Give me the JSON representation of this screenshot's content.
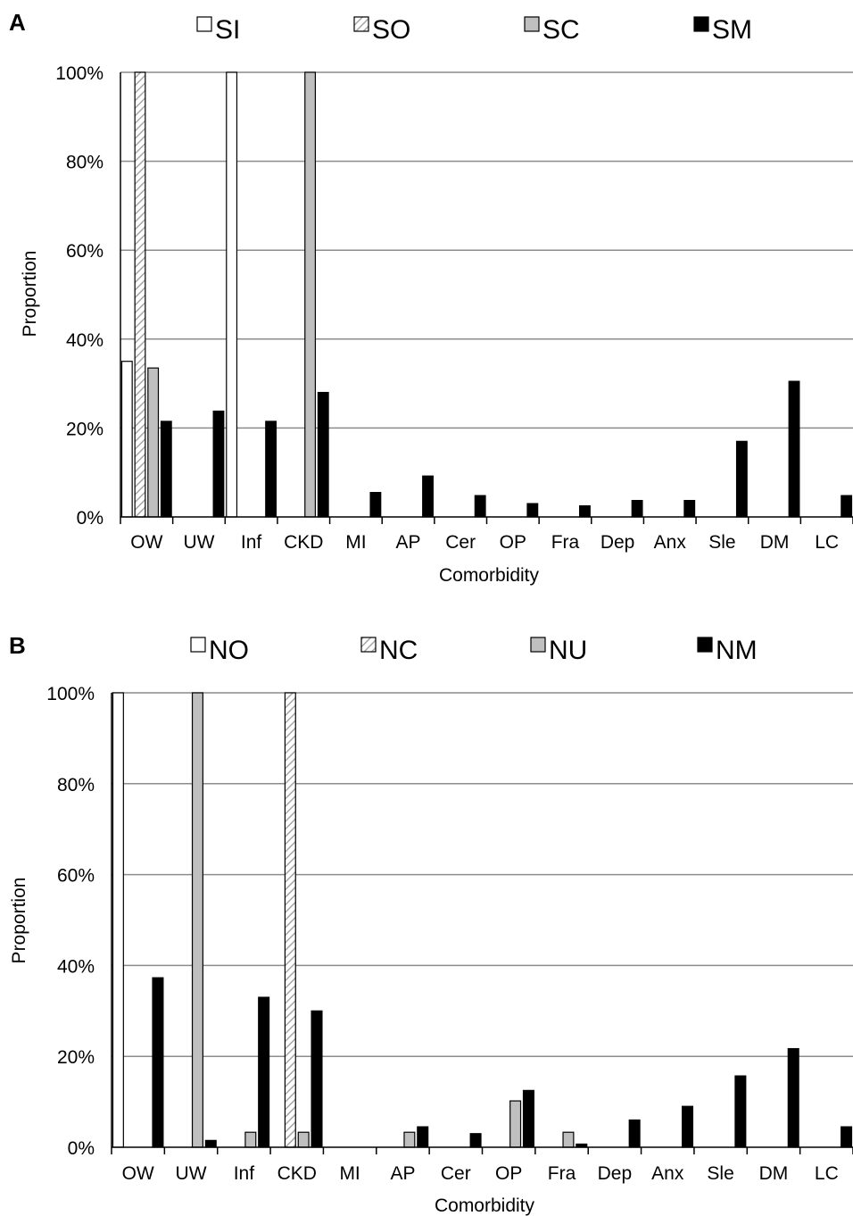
{
  "chart_data": [
    {
      "type": "bar",
      "panel_label": "A",
      "categories": [
        "OW",
        "UW",
        "Inf",
        "CKD",
        "MI",
        "AP",
        "Cer",
        "OP",
        "Fra",
        "Dep",
        "Anx",
        "Sle",
        "DM",
        "LC"
      ],
      "series": [
        {
          "name": "SI",
          "values": [
            35,
            0,
            100,
            0,
            0,
            0,
            0,
            0,
            0,
            0,
            0,
            0,
            0,
            0
          ]
        },
        {
          "name": "SO",
          "values": [
            100,
            0,
            0,
            0,
            0,
            0,
            0,
            0,
            0,
            0,
            0,
            0,
            0,
            0
          ]
        },
        {
          "name": "SC",
          "values": [
            33.5,
            0,
            0,
            100,
            0,
            0,
            0,
            0,
            0,
            0,
            0,
            0,
            0,
            0
          ]
        },
        {
          "name": "SM",
          "values": [
            21.5,
            23.8,
            21.5,
            28,
            5.5,
            9.2,
            4.8,
            3,
            2.5,
            3.7,
            3.7,
            17,
            30.5,
            4.8
          ]
        }
      ],
      "title": "",
      "xlabel": "Comorbidity",
      "ylabel": "Proportion",
      "ylim": [
        0,
        100
      ],
      "yticks": [
        "0%",
        "20%",
        "40%",
        "60%",
        "80%",
        "100%"
      ],
      "grid": true,
      "legend_position": "top",
      "colors": {
        "series1": "#ffffff",
        "series2": "hatched",
        "series3": "#bfbfbf",
        "series4": "#000000"
      }
    },
    {
      "type": "bar",
      "panel_label": "B",
      "categories": [
        "OW",
        "UW",
        "Inf",
        "CKD",
        "MI",
        "AP",
        "Cer",
        "OP",
        "Fra",
        "Dep",
        "Anx",
        "Sle",
        "DM",
        "LC"
      ],
      "series": [
        {
          "name": "NO",
          "values": [
            100,
            0,
            0,
            0,
            0,
            0,
            0,
            0,
            0,
            0,
            0,
            0,
            0,
            0
          ]
        },
        {
          "name": "NC",
          "values": [
            0,
            0,
            0,
            100,
            0,
            0,
            0,
            0,
            0,
            0,
            0,
            0,
            0,
            0
          ]
        },
        {
          "name": "NU",
          "values": [
            0,
            100,
            3.3,
            3.3,
            0,
            3.3,
            0,
            10.2,
            3.3,
            0,
            0,
            0,
            0,
            0
          ]
        },
        {
          "name": "NM",
          "values": [
            37.3,
            1.5,
            33,
            30,
            0,
            4.5,
            3,
            12.5,
            0.7,
            6,
            9,
            15.7,
            21.7,
            4.5
          ]
        }
      ],
      "title": "",
      "xlabel": "Comorbidity",
      "ylabel": "Proportion",
      "ylim": [
        0,
        100
      ],
      "yticks": [
        "0%",
        "20%",
        "40%",
        "60%",
        "80%",
        "100%"
      ],
      "grid": true,
      "legend_position": "top",
      "colors": {
        "series1": "#ffffff",
        "series2": "hatched",
        "series3": "#bfbfbf",
        "series4": "#000000"
      }
    }
  ]
}
